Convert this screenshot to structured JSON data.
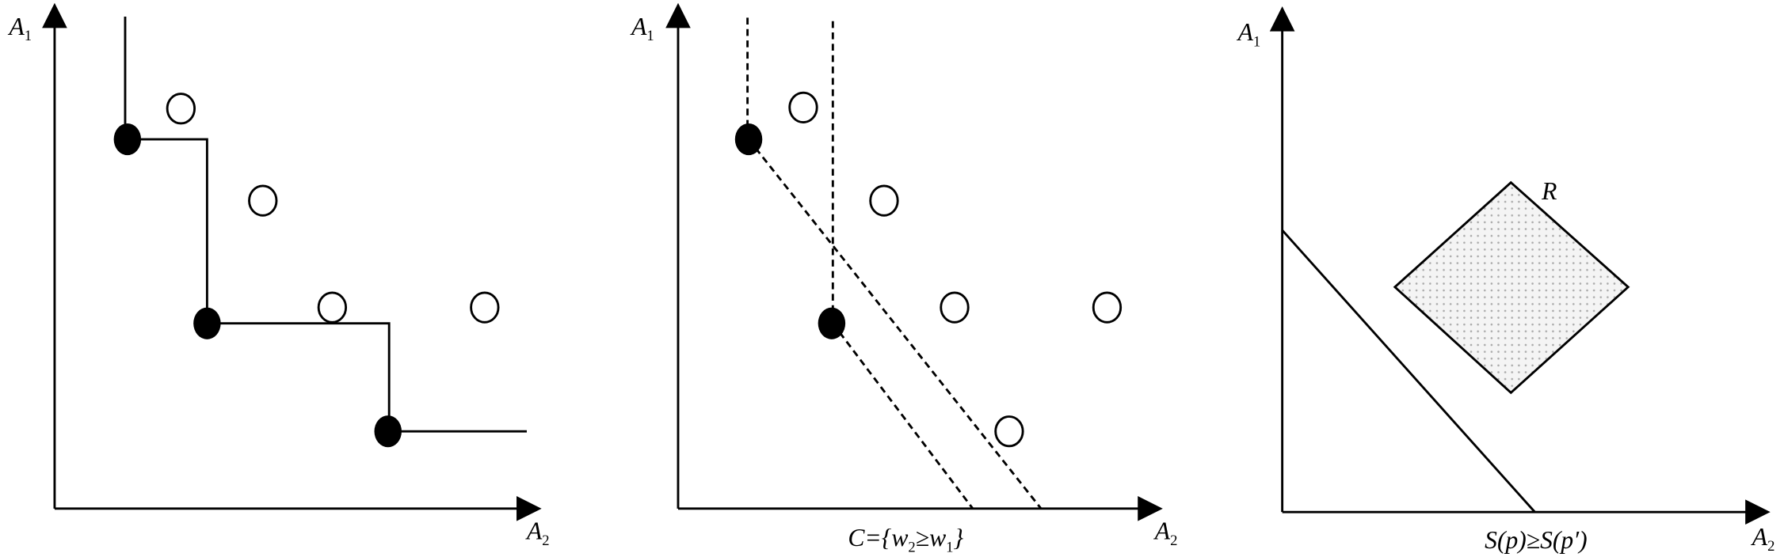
{
  "panels": [
    {
      "y_axis": [
        "A",
        "1"
      ],
      "x_axis": [
        "A",
        "2"
      ]
    },
    {
      "y_axis": [
        "A",
        "1"
      ],
      "x_axis": [
        "A",
        "2"
      ],
      "caption": [
        "C={w",
        "2",
        "≥w",
        "1",
        "}"
      ]
    },
    {
      "y_axis": [
        "A",
        "1"
      ],
      "x_axis": [
        "A",
        "2"
      ],
      "region": "R",
      "caption": [
        "S(p)≥S(p′)"
      ]
    }
  ]
}
